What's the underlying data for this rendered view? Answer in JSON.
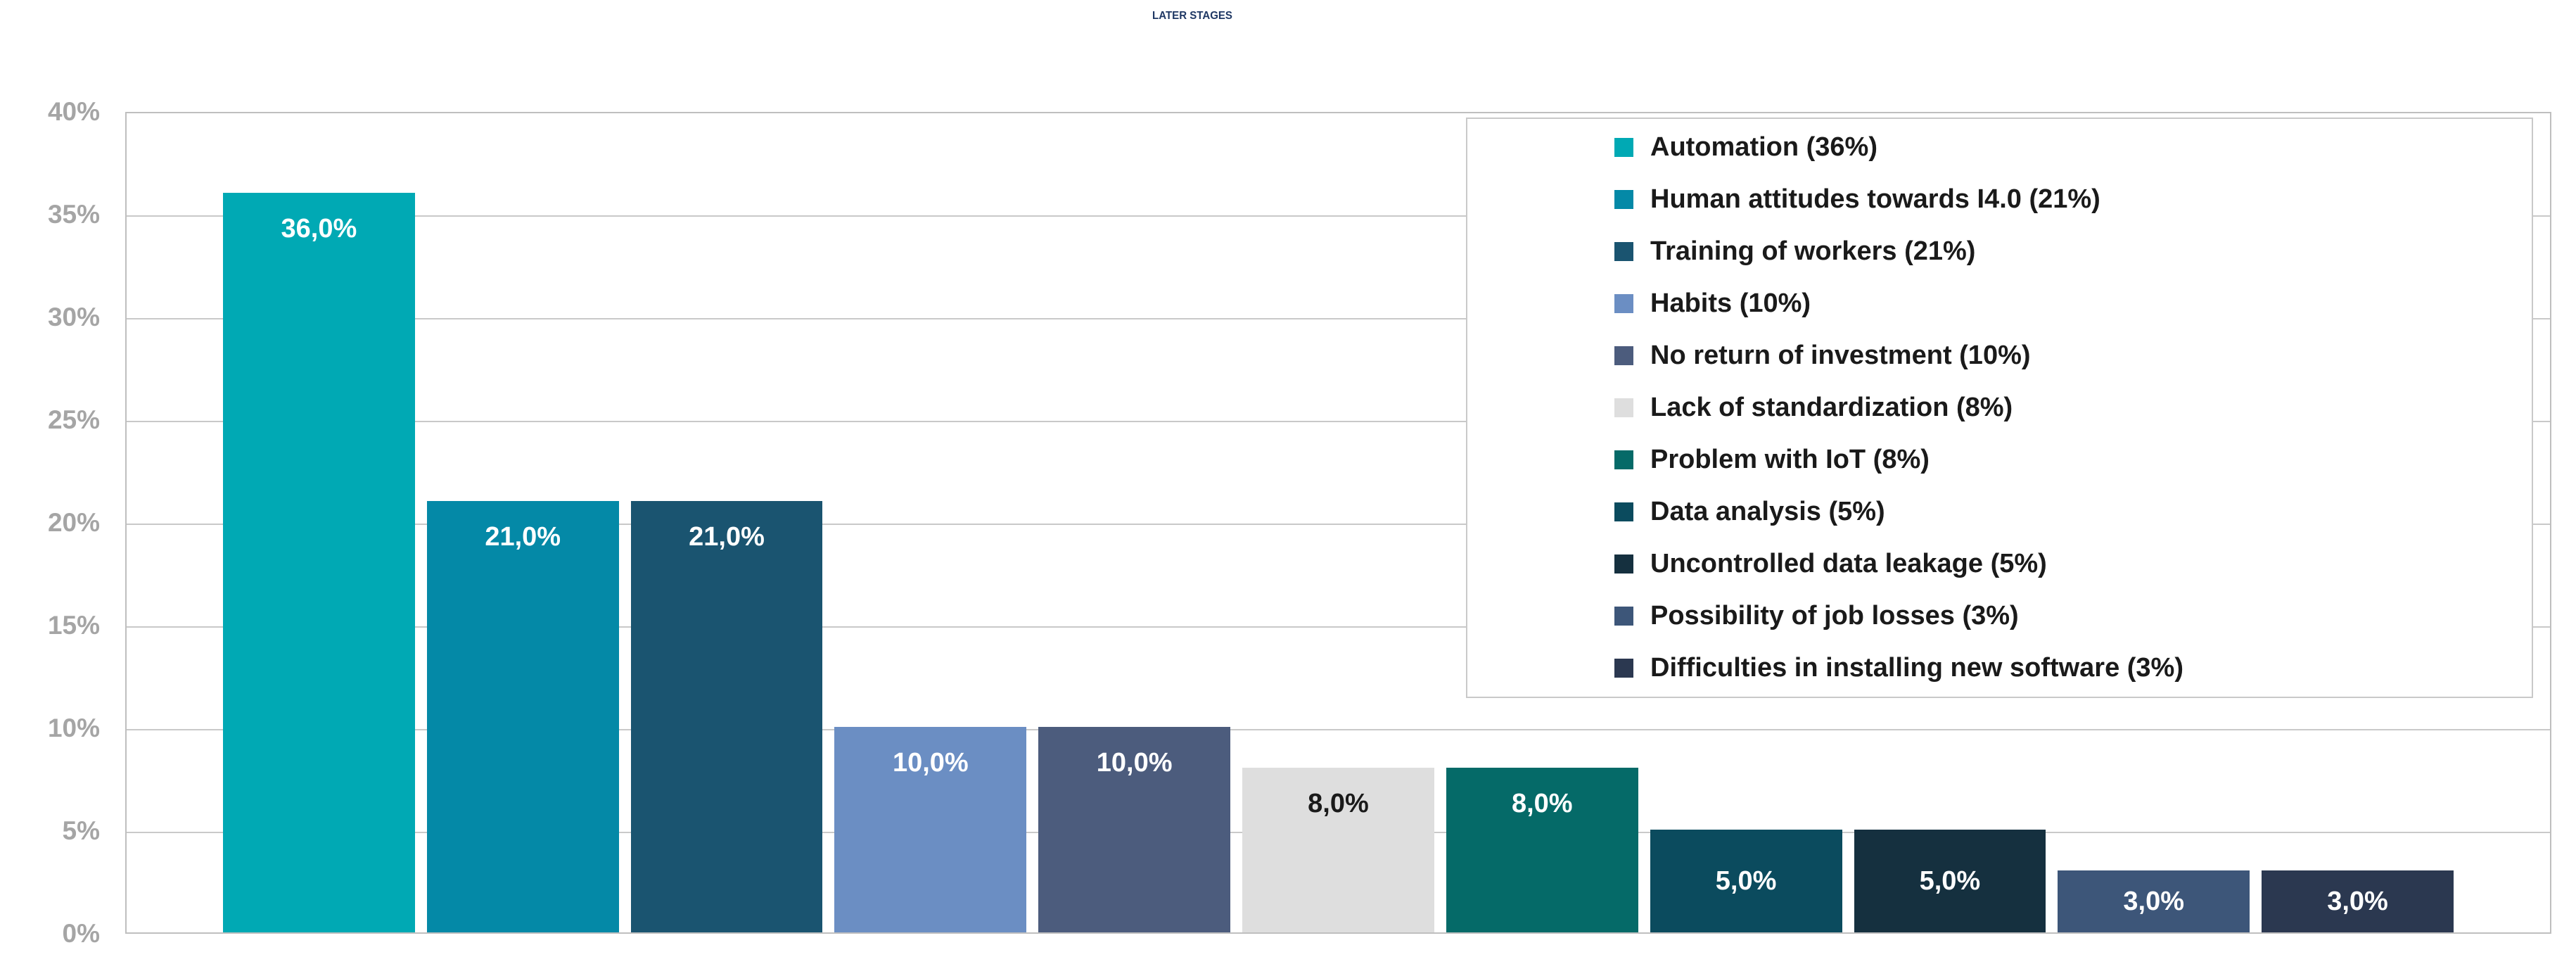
{
  "title": "LATER STAGES",
  "colors": {
    "title": "#1F3864",
    "tick_label": "#A5A5A5",
    "gridline": "#C9C9C9",
    "plot_border": "#BFBFBF",
    "background": "#FFFFFF"
  },
  "chart_data": {
    "type": "bar",
    "title": "LATER STAGES",
    "xlabel": "",
    "ylabel": "",
    "ylim": [
      0,
      40
    ],
    "grid": true,
    "legend_position": "upper right, inside plot",
    "yticks": [
      "40%",
      "35%",
      "30%",
      "25%",
      "20%",
      "15%",
      "10%",
      "5%",
      "0%"
    ],
    "categories": [
      "Automation",
      "Human attitudes towards I4.0",
      "Training of workers",
      "Habits",
      "No return of investment",
      "Lack of standardization",
      "Problem with IoT",
      "Data analysis",
      "Uncontrolled data leakage",
      "Possibility of job losses",
      "Difficulties in installing new software"
    ],
    "values": [
      36,
      21,
      21,
      10,
      10,
      8,
      8,
      5,
      5,
      3,
      3
    ],
    "bar_labels": [
      "36,0%",
      "21,0%",
      "21,0%",
      "10,0%",
      "10,0%",
      "8,0%",
      "8,0%",
      "5,0%",
      "5,0%",
      "3,0%",
      "3,0%"
    ],
    "bar_colors": [
      "#00A9B4",
      "#0489A7",
      "#1A5470",
      "#6B8EC3",
      "#4C5C7D",
      "#DEDEDE",
      "#056A68",
      "#0B4B5E",
      "#15303F",
      "#3D5679",
      "#2B3850"
    ],
    "label_colors": [
      "#FFFFFF",
      "#FFFFFF",
      "#FFFFFF",
      "#FFFFFF",
      "#FFFFFF",
      "#1A1A1A",
      "#FFFFFF",
      "#FFFFFF",
      "#FFFFFF",
      "#FFFFFF",
      "#FFFFFF"
    ],
    "legend": [
      {
        "label": "Automation (36%)",
        "color": "#00A9B4"
      },
      {
        "label": "Human attitudes towards I4.0 (21%)",
        "color": "#0489A7"
      },
      {
        "label": "Training of workers (21%)",
        "color": "#1A5470"
      },
      {
        "label": "Habits (10%)",
        "color": "#6B8EC3"
      },
      {
        "label": "No return of investment (10%)",
        "color": "#4C5C7D"
      },
      {
        "label": "Lack of standardization (8%)",
        "color": "#DEDEDE"
      },
      {
        "label": "Problem with IoT (8%)",
        "color": "#056A68"
      },
      {
        "label": "Data analysis (5%)",
        "color": "#0B4B5E"
      },
      {
        "label": "Uncontrolled data leakage (5%)",
        "color": "#15303F"
      },
      {
        "label": "Possibility of job losses (3%)",
        "color": "#3D5679"
      },
      {
        "label": "Difficulties in installing new software (3%)",
        "color": "#2B3850"
      }
    ]
  }
}
